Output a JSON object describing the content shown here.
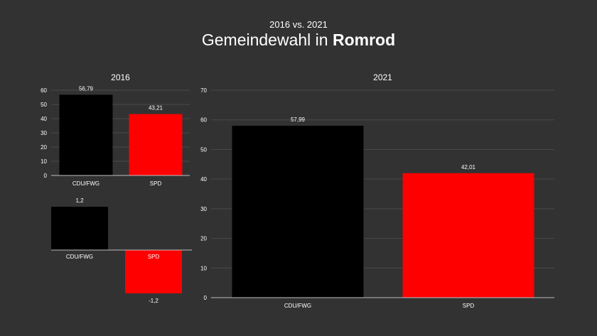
{
  "header": {
    "subtitle": "2016 vs. 2021",
    "title_prefix": "Gemeindewahl in ",
    "title_place": "Romrod"
  },
  "colors": {
    "background": "#323232",
    "CDU/FWG": "#000000",
    "SPD": "#ff0000",
    "text": "#ffffff",
    "grid": "#4a4a4a",
    "axis": "#bfbfbf"
  },
  "chart_data": [
    {
      "id": "chart2016",
      "type": "bar",
      "title": "2016",
      "categories": [
        "CDU/FWG",
        "SPD"
      ],
      "values": [
        56.79,
        43.21
      ],
      "value_labels": [
        "56,79",
        "43,21"
      ],
      "ylim": [
        0,
        60
      ],
      "yticks": [
        0,
        10,
        20,
        30,
        40,
        50,
        60
      ],
      "grid": true
    },
    {
      "id": "diff",
      "type": "bar",
      "title": "",
      "categories": [
        "CDU/FWG",
        "SPD"
      ],
      "values": [
        1.2,
        -1.2
      ],
      "value_labels": [
        "1,2",
        "-1,2"
      ],
      "grid": false
    },
    {
      "id": "chart2021",
      "type": "bar",
      "title": "2021",
      "categories": [
        "CDU/FWG",
        "SPD"
      ],
      "values": [
        57.99,
        42.01
      ],
      "value_labels": [
        "57,99",
        "42,01"
      ],
      "ylim": [
        0,
        70
      ],
      "yticks": [
        0,
        10,
        20,
        30,
        40,
        50,
        60,
        70
      ],
      "grid": true
    }
  ]
}
